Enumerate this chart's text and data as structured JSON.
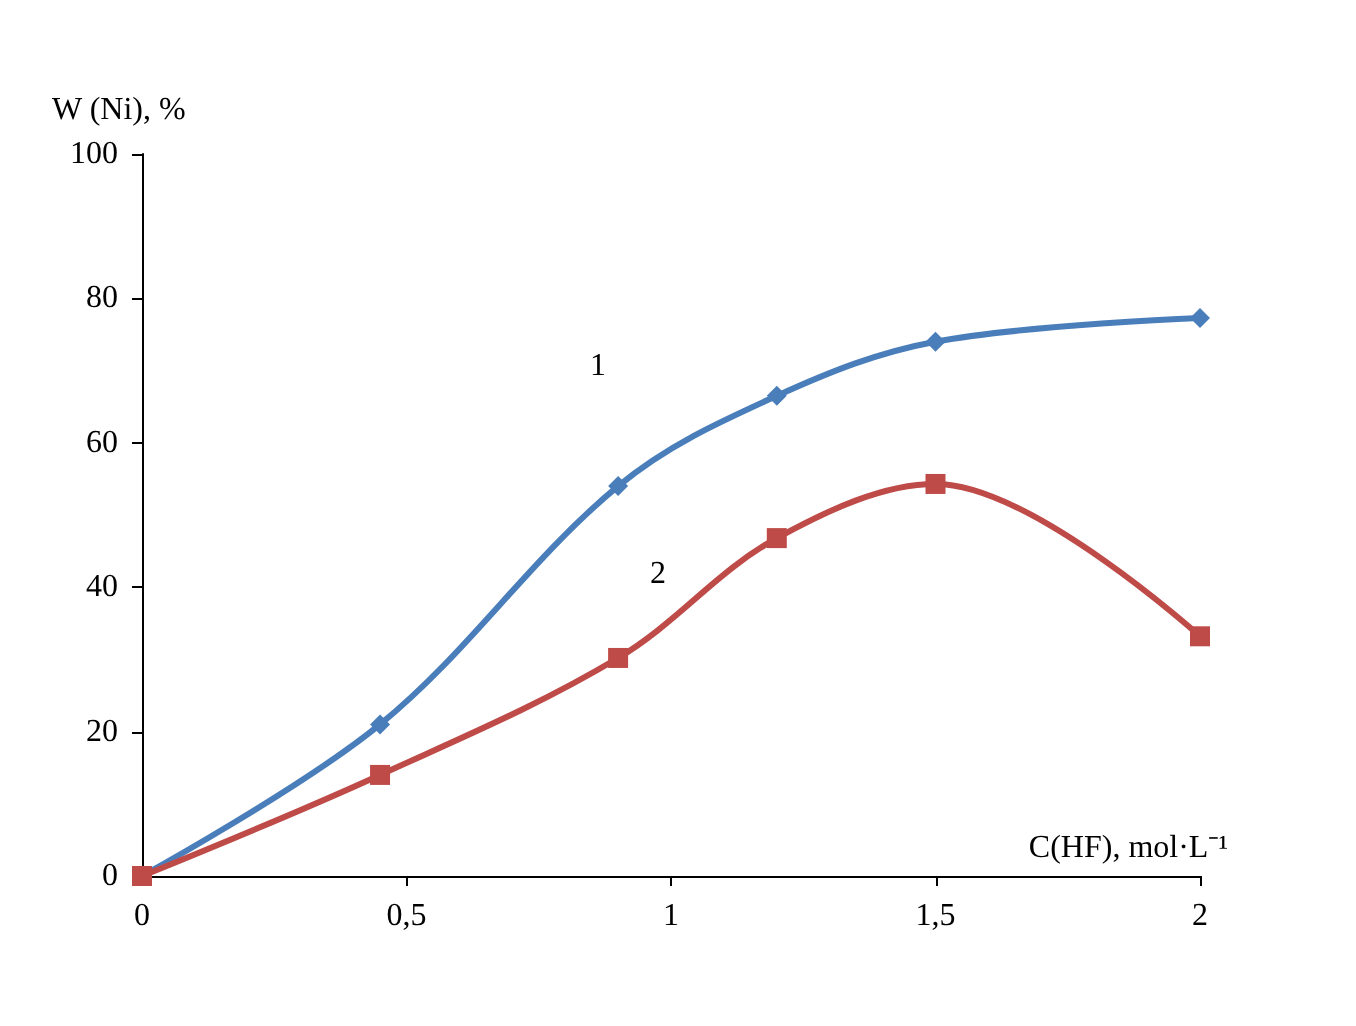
{
  "chart_data": {
    "type": "line",
    "xlabel": "C(HF), mol·L⁻¹",
    "ylabel": "W (Ni), %",
    "xlim": [
      0,
      2
    ],
    "xticks": [
      0,
      {
        "value": 0.5,
        "label": "0,5"
      },
      1,
      {
        "value": 1.5,
        "label": "1,5"
      },
      2
    ],
    "ylim": [
      0,
      100
    ],
    "yticks": [
      0,
      20,
      40,
      60,
      80,
      100
    ],
    "grid": false,
    "legend": false,
    "line_style": "solid",
    "series": [
      {
        "name": "1",
        "color": "#4a7ebb",
        "marker": "diamond",
        "x": [
          0,
          0.45,
          0.9,
          1.2,
          1.5,
          2
        ],
        "values": [
          0,
          21,
          54,
          66.5,
          74,
          77.3
        ]
      },
      {
        "name": "2",
        "color": "#be4b48",
        "marker": "square",
        "x": [
          0,
          0.45,
          0.9,
          1.2,
          1.5,
          2
        ],
        "values": [
          0,
          14,
          30.2,
          46.8,
          54.3,
          33.2
        ]
      }
    ]
  }
}
